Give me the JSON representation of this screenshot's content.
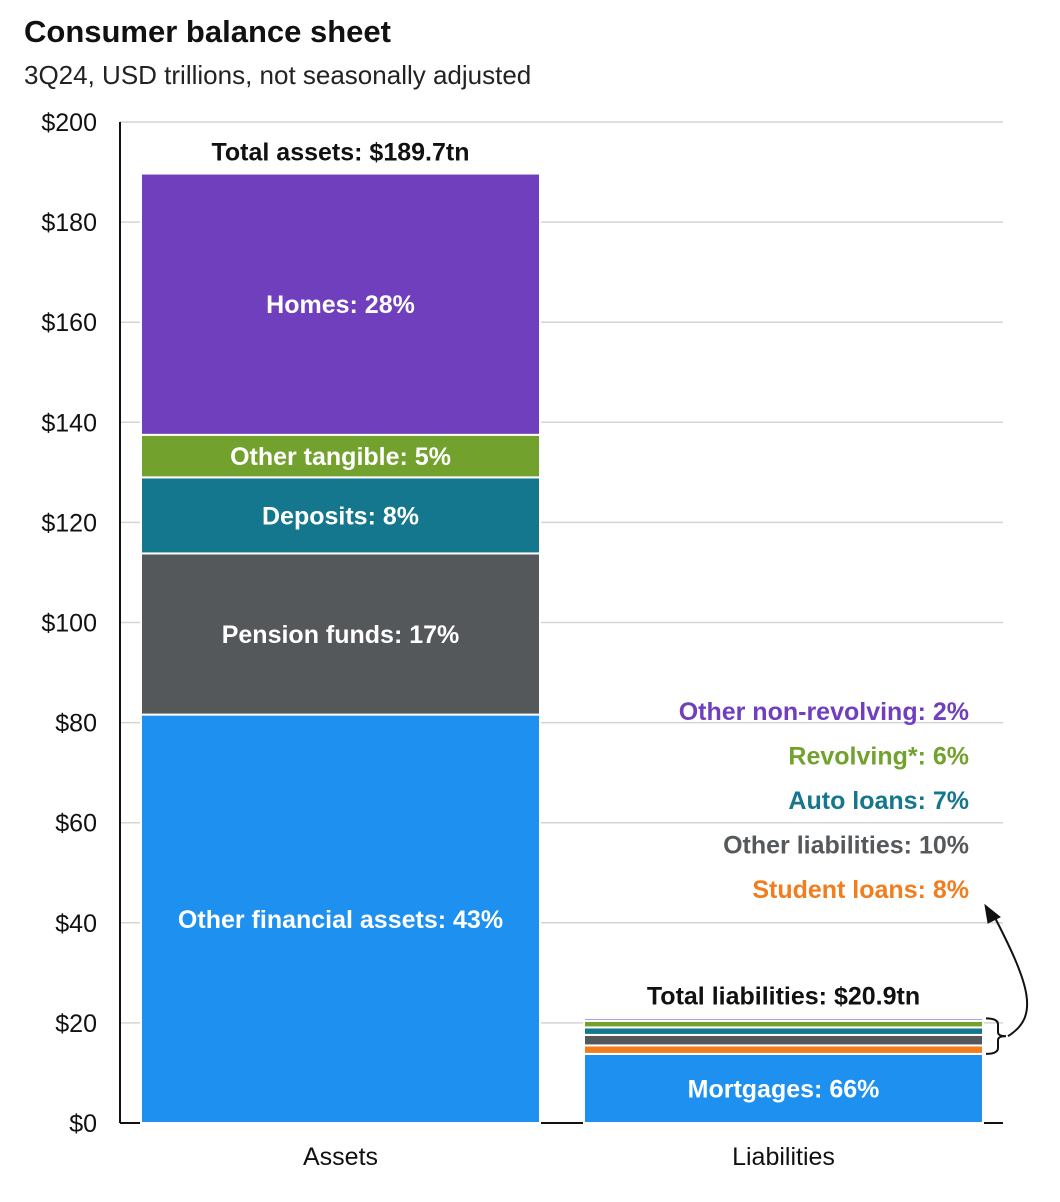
{
  "chart_data": {
    "type": "bar",
    "stacked": true,
    "title": "Consumer balance sheet",
    "subtitle": "3Q24, USD trillions, not seasonally adjusted",
    "categories": [
      "Assets",
      "Liabilities"
    ],
    "ylim": [
      0,
      200
    ],
    "yticks": [
      0,
      20,
      40,
      60,
      80,
      100,
      120,
      140,
      160,
      180,
      200
    ],
    "ytick_labels": [
      "$0",
      "$20",
      "$40",
      "$60",
      "$80",
      "$100",
      "$120",
      "$140",
      "$160",
      "$180",
      "$200"
    ],
    "grid": true,
    "assets": {
      "total": 189.7,
      "total_label": "Total assets: $189.7tn",
      "segments": [
        {
          "name": "Other financial assets",
          "value": 81.6,
          "label": "Other financial assets: 43%",
          "color": "#1e90f0"
        },
        {
          "name": "Pension funds",
          "value": 32.2,
          "label": "Pension funds: 17%",
          "color": "#55585b"
        },
        {
          "name": "Deposits",
          "value": 15.2,
          "label": "Deposits: 8%",
          "color": "#14778d"
        },
        {
          "name": "Other tangible",
          "value": 8.5,
          "label": "Other tangible: 5%",
          "color": "#72a22d"
        },
        {
          "name": "Homes",
          "value": 52.2,
          "label": "Homes: 28%",
          "color": "#6f3fbd"
        }
      ]
    },
    "liabilities": {
      "total": 20.9,
      "total_label": "Total liabilities: $20.9tn",
      "segments": [
        {
          "name": "Mortgages",
          "value": 13.8,
          "label": "Mortgages: 66%",
          "color": "#1e90f0"
        },
        {
          "name": "Student loans",
          "value": 1.7,
          "label": "Student loans: 8%",
          "color": "#f07d1e"
        },
        {
          "name": "Other liabilities",
          "value": 2.1,
          "label": "Other liabilities: 10%",
          "color": "#55585b"
        },
        {
          "name": "Auto loans",
          "value": 1.5,
          "label": "Auto loans: 7%",
          "color": "#14778d"
        },
        {
          "name": "Revolving",
          "value": 1.3,
          "label": "Revolving*: 6%",
          "color": "#72a22d"
        },
        {
          "name": "Other non-revolving",
          "value": 0.5,
          "label": "Other non-revolving: 2%",
          "color": "#6f3fbd"
        }
      ]
    }
  }
}
